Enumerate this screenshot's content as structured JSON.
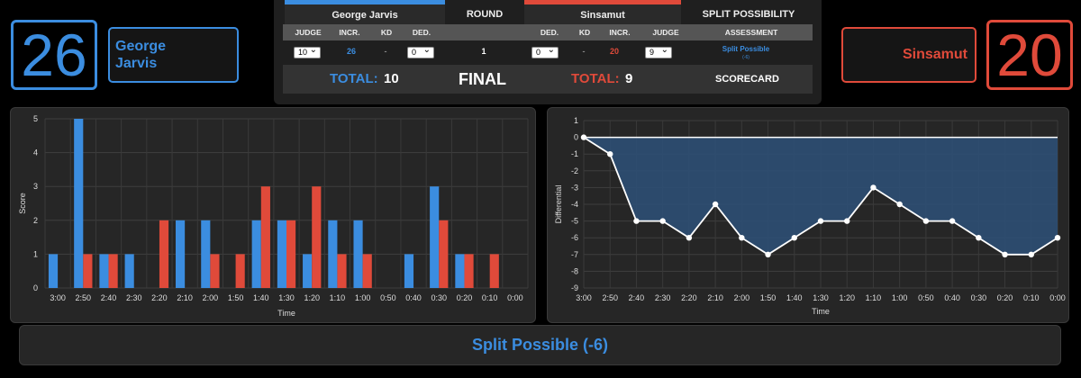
{
  "blue_corner": {
    "score": "26",
    "name_first": "George",
    "name_last": "Jarvis"
  },
  "red_corner": {
    "score": "20",
    "name": "Sinsamut"
  },
  "scorecard": {
    "headers": {
      "blue_name": "George Jarvis",
      "round": "ROUND",
      "red_name": "Sinsamut",
      "split": "SPLIT POSSIBILITY"
    },
    "subheaders": {
      "judge": "JUDGE",
      "incr": "INCR.",
      "kd": "KD",
      "ded": "DED.",
      "assessment": "ASSESSMENT"
    },
    "row": {
      "blue_judge": "10",
      "blue_incr": "26",
      "blue_kd": "-",
      "blue_ded": "0",
      "round": "1",
      "red_ded": "0",
      "red_kd": "-",
      "red_incr": "20",
      "red_judge": "9",
      "assessment": "Split Possible",
      "assessment_detail": "(-6)"
    },
    "totals": {
      "blue_label": "TOTAL:",
      "blue_value": "10",
      "final": "FINAL",
      "red_label": "TOTAL:",
      "red_value": "9",
      "scorecard": "SCORECARD"
    }
  },
  "colors": {
    "blue": "#3b8de0",
    "red": "#e04a3a",
    "panel": "#262626"
  },
  "banner": "Split Possible (-6)",
  "chart_data": [
    {
      "type": "bar",
      "xlabel": "Time",
      "ylabel": "Score",
      "ylim": [
        0,
        5
      ],
      "yticks": [
        "0",
        "1",
        "2",
        "3",
        "4",
        "5"
      ],
      "categories": [
        "3:00",
        "2:50",
        "2:40",
        "2:30",
        "2:20",
        "2:10",
        "2:00",
        "1:50",
        "1:40",
        "1:30",
        "1:20",
        "1:10",
        "1:00",
        "0:50",
        "0:40",
        "0:30",
        "0:20",
        "0:10",
        "0:00"
      ],
      "series": [
        {
          "color": "#3b8de0",
          "values": [
            1,
            5,
            1,
            1,
            0,
            2,
            2,
            0,
            2,
            2,
            1,
            2,
            2,
            0,
            1,
            3,
            1,
            0,
            0
          ]
        },
        {
          "color": "#e04a3a",
          "values": [
            0,
            1,
            1,
            0,
            2,
            0,
            1,
            1,
            3,
            2,
            3,
            1,
            1,
            0,
            0,
            2,
            1,
            1,
            0
          ]
        }
      ],
      "grid": true
    },
    {
      "type": "area",
      "xlabel": "Time",
      "ylabel": "Differential",
      "ylim": [
        -9,
        1
      ],
      "yticks": [
        "1",
        "0",
        "-1",
        "-2",
        "-3",
        "-4",
        "-5",
        "-6",
        "-7",
        "-8",
        "-9"
      ],
      "x": [
        "3:00",
        "2:50",
        "2:40",
        "2:30",
        "2:20",
        "2:10",
        "2:00",
        "1:50",
        "1:40",
        "1:30",
        "1:20",
        "1:10",
        "1:00",
        "0:50",
        "0:40",
        "0:30",
        "0:20",
        "0:10",
        "0:00"
      ],
      "values": [
        0,
        -1,
        -5,
        -5,
        -6,
        -4,
        -6,
        -7,
        -6,
        -5,
        -5,
        -3,
        -4,
        -5,
        -5,
        -6,
        -7,
        -7,
        -6
      ],
      "fill": "#2d4f74",
      "grid": true
    }
  ]
}
